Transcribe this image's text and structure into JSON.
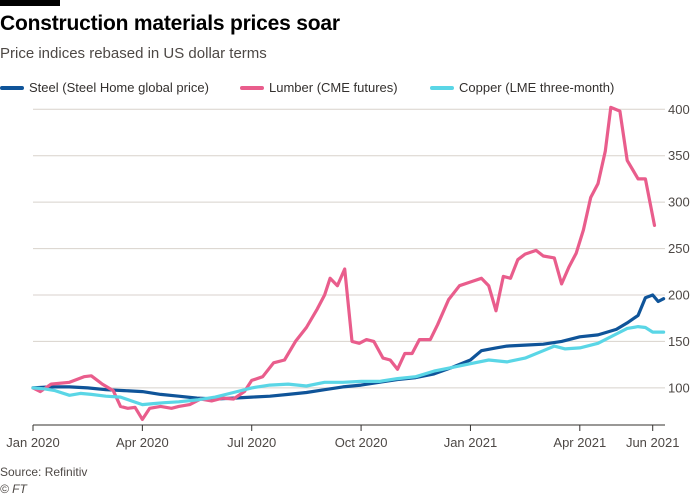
{
  "header": {
    "title": "Construction materials prices soar",
    "subtitle": "Price indices rebased in US dollar terms"
  },
  "footer": {
    "source": "Source: Refinitiv",
    "credit": "© FT"
  },
  "chart_data": {
    "type": "line",
    "title": "Construction materials prices soar",
    "subtitle": "Price indices rebased in US dollar terms",
    "xlabel": "",
    "ylabel": "",
    "x_unit": "months since Jan 2020",
    "xlim": [
      0,
      17.2
    ],
    "ylim": [
      60,
      410
    ],
    "yticks": [
      100,
      150,
      200,
      250,
      300,
      350,
      400
    ],
    "xticks": [
      {
        "t": 0,
        "label": "Jan 2020"
      },
      {
        "t": 3,
        "label": "Apr 2020"
      },
      {
        "t": 6,
        "label": "Jul 2020"
      },
      {
        "t": 9,
        "label": "Oct 2020"
      },
      {
        "t": 12,
        "label": "Jan 2021"
      },
      {
        "t": 15,
        "label": "Apr 2021"
      },
      {
        "t": 17,
        "label": "Jun 2021"
      }
    ],
    "grid": true,
    "legend_position": "top",
    "series": [
      {
        "name": "Steel (Steel Home global price)",
        "color": "#0f5499",
        "points": [
          [
            0,
            100
          ],
          [
            0.5,
            101
          ],
          [
            1,
            101
          ],
          [
            1.5,
            100
          ],
          [
            2,
            98
          ],
          [
            2.5,
            97
          ],
          [
            3,
            96
          ],
          [
            3.5,
            93
          ],
          [
            4,
            91
          ],
          [
            4.5,
            89
          ],
          [
            5,
            88
          ],
          [
            5.5,
            89
          ],
          [
            6,
            90
          ],
          [
            6.5,
            91
          ],
          [
            7,
            93
          ],
          [
            7.5,
            95
          ],
          [
            8,
            98
          ],
          [
            8.5,
            101
          ],
          [
            9,
            103
          ],
          [
            9.5,
            106
          ],
          [
            10,
            109
          ],
          [
            10.5,
            111
          ],
          [
            11,
            115
          ],
          [
            11.5,
            122
          ],
          [
            12,
            130
          ],
          [
            12.3,
            140
          ],
          [
            12.7,
            143
          ],
          [
            13,
            145
          ],
          [
            13.5,
            146
          ],
          [
            14,
            147
          ],
          [
            14.5,
            150
          ],
          [
            15,
            155
          ],
          [
            15.5,
            157
          ],
          [
            16,
            163
          ],
          [
            16.3,
            170
          ],
          [
            16.6,
            178
          ],
          [
            16.8,
            197
          ],
          [
            17,
            200
          ],
          [
            17.15,
            193
          ],
          [
            17.3,
            196
          ]
        ]
      },
      {
        "name": "Lumber (CME futures)",
        "color": "#e95d8c",
        "points": [
          [
            0,
            100
          ],
          [
            0.2,
            96
          ],
          [
            0.5,
            104
          ],
          [
            1,
            106
          ],
          [
            1.4,
            112
          ],
          [
            1.6,
            113
          ],
          [
            1.9,
            104
          ],
          [
            2.2,
            97
          ],
          [
            2.4,
            80
          ],
          [
            2.6,
            78
          ],
          [
            2.8,
            79
          ],
          [
            3,
            66
          ],
          [
            3.2,
            78
          ],
          [
            3.5,
            80
          ],
          [
            3.8,
            78
          ],
          [
            4,
            80
          ],
          [
            4.3,
            82
          ],
          [
            4.6,
            88
          ],
          [
            4.9,
            86
          ],
          [
            5.2,
            89
          ],
          [
            5.5,
            88
          ],
          [
            5.8,
            96
          ],
          [
            6,
            108
          ],
          [
            6.3,
            112
          ],
          [
            6.6,
            127
          ],
          [
            6.9,
            130
          ],
          [
            7.2,
            150
          ],
          [
            7.5,
            165
          ],
          [
            7.8,
            185
          ],
          [
            8,
            200
          ],
          [
            8.15,
            218
          ],
          [
            8.35,
            210
          ],
          [
            8.55,
            228
          ],
          [
            8.75,
            150
          ],
          [
            8.95,
            148
          ],
          [
            9.15,
            152
          ],
          [
            9.35,
            150
          ],
          [
            9.6,
            132
          ],
          [
            9.8,
            130
          ],
          [
            10,
            120
          ],
          [
            10.2,
            137
          ],
          [
            10.4,
            137
          ],
          [
            10.6,
            152
          ],
          [
            10.9,
            152
          ],
          [
            11.1,
            168
          ],
          [
            11.4,
            195
          ],
          [
            11.7,
            210
          ],
          [
            12,
            214
          ],
          [
            12.3,
            218
          ],
          [
            12.5,
            210
          ],
          [
            12.7,
            183
          ],
          [
            12.9,
            220
          ],
          [
            13.1,
            218
          ],
          [
            13.3,
            238
          ],
          [
            13.5,
            244
          ],
          [
            13.8,
            248
          ],
          [
            14,
            242
          ],
          [
            14.3,
            240
          ],
          [
            14.5,
            212
          ],
          [
            14.7,
            230
          ],
          [
            14.9,
            245
          ],
          [
            15.1,
            270
          ],
          [
            15.3,
            305
          ],
          [
            15.5,
            320
          ],
          [
            15.7,
            355
          ],
          [
            15.85,
            402
          ],
          [
            16.1,
            398
          ],
          [
            16.3,
            345
          ],
          [
            16.6,
            325
          ],
          [
            16.8,
            325
          ],
          [
            17.05,
            275
          ]
        ]
      },
      {
        "name": "Copper (LME three-month)",
        "color": "#5ad6e6",
        "points": [
          [
            0,
            100
          ],
          [
            0.3,
            99
          ],
          [
            0.6,
            97
          ],
          [
            1,
            92
          ],
          [
            1.3,
            94
          ],
          [
            1.6,
            93
          ],
          [
            2,
            91
          ],
          [
            2.4,
            90
          ],
          [
            2.7,
            86
          ],
          [
            3,
            82
          ],
          [
            3.3,
            83
          ],
          [
            3.6,
            84
          ],
          [
            4,
            85
          ],
          [
            4.5,
            87
          ],
          [
            5,
            90
          ],
          [
            5.5,
            95
          ],
          [
            6,
            100
          ],
          [
            6.5,
            103
          ],
          [
            7,
            104
          ],
          [
            7.5,
            102
          ],
          [
            8,
            106
          ],
          [
            8.5,
            106
          ],
          [
            9,
            107
          ],
          [
            9.5,
            107
          ],
          [
            10,
            110
          ],
          [
            10.5,
            112
          ],
          [
            11,
            118
          ],
          [
            11.5,
            122
          ],
          [
            12,
            126
          ],
          [
            12.5,
            130
          ],
          [
            13,
            128
          ],
          [
            13.5,
            132
          ],
          [
            14,
            140
          ],
          [
            14.3,
            145
          ],
          [
            14.6,
            142
          ],
          [
            15,
            143
          ],
          [
            15.5,
            148
          ],
          [
            16,
            158
          ],
          [
            16.3,
            164
          ],
          [
            16.6,
            166
          ],
          [
            16.8,
            165
          ],
          [
            17,
            160
          ],
          [
            17.3,
            160
          ]
        ]
      }
    ]
  }
}
